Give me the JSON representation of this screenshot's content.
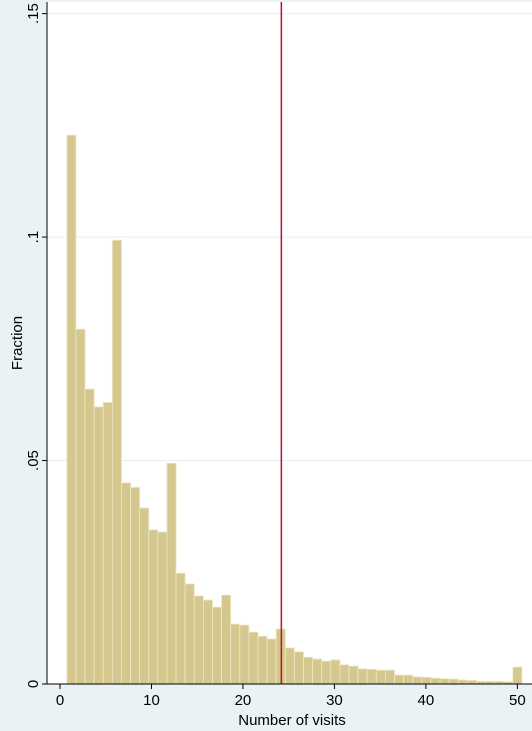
{
  "chart_data": {
    "type": "histogram",
    "x_label": "Number of visits",
    "y_label": "Fraction",
    "bins": [
      0.75,
      1.745,
      2.74,
      3.735,
      4.73,
      5.725,
      6.72,
      7.715,
      8.71,
      9.705,
      10.7,
      11.695,
      12.69,
      13.685,
      14.68,
      15.675,
      16.67,
      17.665,
      18.66,
      19.655,
      20.65,
      21.645,
      22.64,
      23.635,
      24.63,
      25.625,
      26.62,
      27.615,
      28.61,
      29.605,
      30.6,
      31.595,
      32.59,
      33.585,
      34.58,
      35.575,
      36.57,
      37.565,
      38.56,
      39.555,
      40.55,
      41.545,
      42.54,
      43.535,
      44.53,
      45.525,
      46.52,
      47.515,
      48.51,
      49.505,
      50.5
    ],
    "values": [
      0.1228,
      0.0794,
      0.066,
      0.062,
      0.063,
      0.0993,
      0.045,
      0.044,
      0.0394,
      0.0345,
      0.034,
      0.0494,
      0.0248,
      0.0224,
      0.0197,
      0.0188,
      0.0172,
      0.0199,
      0.0134,
      0.0132,
      0.0116,
      0.0107,
      0.0101,
      0.0123,
      0.0081,
      0.0072,
      0.006,
      0.0056,
      0.0051,
      0.0054,
      0.0043,
      0.004,
      0.0034,
      0.0033,
      0.0031,
      0.0031,
      0.002,
      0.002,
      0.0016,
      0.0015,
      0.0013,
      0.0012,
      0.0011,
      0.0009,
      0.0008,
      0.0006,
      0.0006,
      0.0006,
      0.0005,
      0.0038
    ],
    "color": "#d5c88f",
    "xlim": [
      -1.42,
      51.6
    ],
    "ylim": [
      0,
      0.1526
    ],
    "xticks": [
      0,
      10,
      20,
      30,
      40,
      50
    ],
    "yticks": [
      0,
      {
        "value": 0.05,
        "label": ".05"
      },
      {
        "value": 0.1,
        "label": ".1"
      },
      {
        "value": 0.15,
        "label": ".15"
      }
    ],
    "grid": true,
    "xline": 24.2,
    "xline_color": "#c0102a"
  }
}
